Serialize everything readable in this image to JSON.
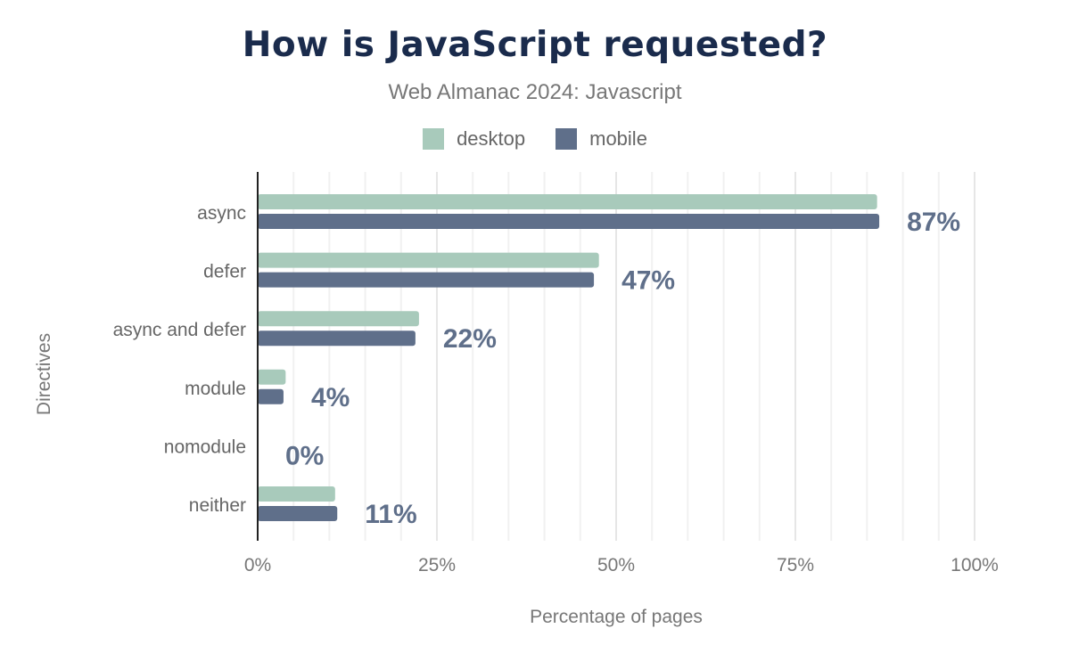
{
  "chart_data": {
    "type": "bar",
    "orientation": "horizontal",
    "title": "How is JavaScript requested?",
    "subtitle": "Web Almanac 2024: Javascript",
    "xlabel": "Percentage of pages",
    "ylabel": "Directives",
    "categories": [
      "async",
      "defer",
      "async and defer",
      "module",
      "nomodule",
      "neither"
    ],
    "series": [
      {
        "name": "desktop",
        "color": "#a8cabb",
        "values": [
          86.4,
          47.6,
          22.5,
          3.9,
          0,
          10.8
        ]
      },
      {
        "name": "mobile",
        "color": "#5f6f8a",
        "values": [
          86.7,
          46.9,
          22.0,
          3.6,
          0,
          11.1
        ]
      }
    ],
    "data_labels": [
      "87%",
      "47%",
      "22%",
      "4%",
      "0%",
      "11%"
    ],
    "xlim": [
      0,
      100
    ],
    "xticks": [
      0,
      25,
      50,
      75,
      100
    ],
    "xtick_labels": [
      "0%",
      "25%",
      "50%",
      "75%",
      "100%"
    ],
    "grid": true,
    "legend_position": "top"
  }
}
